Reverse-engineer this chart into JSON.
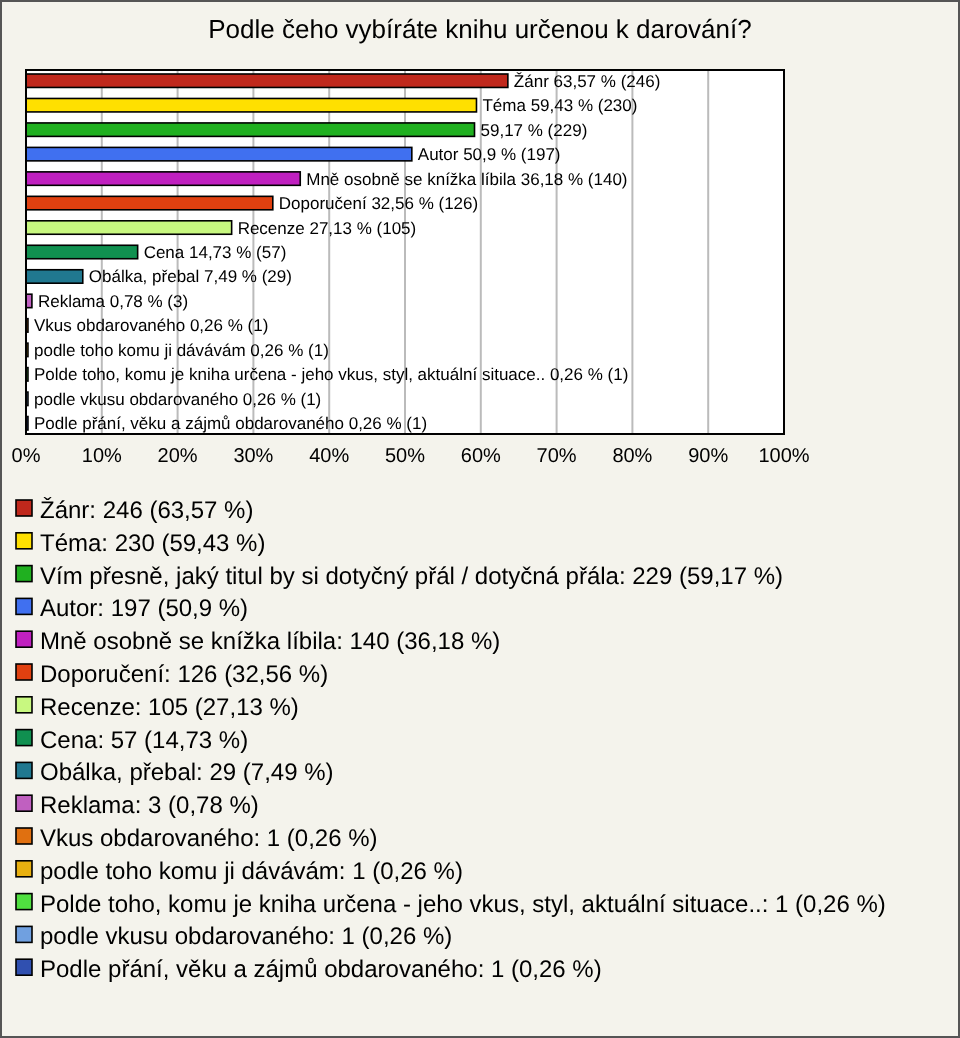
{
  "chart_data": {
    "type": "bar",
    "orientation": "horizontal",
    "title": "Podle čeho vybíráte knihu určenou k darování?",
    "categories": [
      null,
      null,
      null,
      null,
      null,
      null,
      null,
      null,
      null,
      null,
      null,
      null,
      null,
      null,
      null
    ],
    "series": [
      {
        "name": "Žánr: 246 (63,57 %)",
        "color": "#c0281c",
        "values": [
          63.57,
          null,
          null,
          null,
          null,
          null,
          null,
          null,
          null,
          null,
          null,
          null,
          null,
          null,
          null
        ],
        "value_labels": [
          "Žánr 63,57 % (246)",
          null,
          null,
          null,
          null,
          null,
          null,
          null,
          null,
          null,
          null,
          null,
          null,
          null,
          null
        ]
      },
      {
        "name": "Téma: 230 (59,43 %)",
        "color": "#ffe000",
        "values": [
          null,
          59.43,
          null,
          null,
          null,
          null,
          null,
          null,
          null,
          null,
          null,
          null,
          null,
          null,
          null
        ],
        "value_labels": [
          null,
          "Téma 59,43 % (230)",
          null,
          null,
          null,
          null,
          null,
          null,
          null,
          null,
          null,
          null,
          null,
          null,
          null
        ]
      },
      {
        "name": "Vím přesně, jaký titul by si dotyčný přál / dotyčná přála: 229 (59,17 %)",
        "color": "#20b020",
        "values": [
          null,
          null,
          59.17,
          null,
          null,
          null,
          null,
          null,
          null,
          null,
          null,
          null,
          null,
          null,
          null
        ],
        "value_labels": [
          null,
          null,
          "59,17 % (229)",
          null,
          null,
          null,
          null,
          null,
          null,
          null,
          null,
          null,
          null,
          null,
          null
        ]
      },
      {
        "name": "Autor: 197 (50,9 %)",
        "color": "#4070f0",
        "values": [
          null,
          null,
          null,
          50.9,
          null,
          null,
          null,
          null,
          null,
          null,
          null,
          null,
          null,
          null,
          null
        ],
        "value_labels": [
          null,
          null,
          null,
          "Autor 50,9 % (197)",
          null,
          null,
          null,
          null,
          null,
          null,
          null,
          null,
          null,
          null,
          null
        ]
      },
      {
        "name": "Mně osobně se knížka líbila: 140 (36,18 %)",
        "color": "#c020c0",
        "values": [
          null,
          null,
          null,
          null,
          36.18,
          null,
          null,
          null,
          null,
          null,
          null,
          null,
          null,
          null,
          null
        ],
        "value_labels": [
          null,
          null,
          null,
          null,
          "Mně osobně se knížka líbila 36,18 % (140)",
          null,
          null,
          null,
          null,
          null,
          null,
          null,
          null,
          null,
          null
        ]
      },
      {
        "name": "Doporučení: 126 (32,56 %)",
        "color": "#e04010",
        "values": [
          null,
          null,
          null,
          null,
          null,
          32.56,
          null,
          null,
          null,
          null,
          null,
          null,
          null,
          null,
          null
        ],
        "value_labels": [
          null,
          null,
          null,
          null,
          null,
          "Doporučení 32,56 % (126)",
          null,
          null,
          null,
          null,
          null,
          null,
          null,
          null,
          null
        ]
      },
      {
        "name": "Recenze: 105 (27,13 %)",
        "color": "#c8f880",
        "values": [
          null,
          null,
          null,
          null,
          null,
          null,
          27.13,
          null,
          null,
          null,
          null,
          null,
          null,
          null,
          null
        ],
        "value_labels": [
          null,
          null,
          null,
          null,
          null,
          null,
          "Recenze 27,13 % (105)",
          null,
          null,
          null,
          null,
          null,
          null,
          null,
          null
        ]
      },
      {
        "name": "Cena: 57 (14,73 %)",
        "color": "#109050",
        "values": [
          null,
          null,
          null,
          null,
          null,
          null,
          null,
          14.73,
          null,
          null,
          null,
          null,
          null,
          null,
          null
        ],
        "value_labels": [
          null,
          null,
          null,
          null,
          null,
          null,
          null,
          "Cena 14,73 % (57)",
          null,
          null,
          null,
          null,
          null,
          null,
          null
        ]
      },
      {
        "name": "Obálka, přebal: 29 (7,49 %)",
        "color": "#207890",
        "values": [
          null,
          null,
          null,
          null,
          null,
          null,
          null,
          null,
          7.49,
          null,
          null,
          null,
          null,
          null,
          null
        ],
        "value_labels": [
          null,
          null,
          null,
          null,
          null,
          null,
          null,
          null,
          "Obálka, přebal 7,49 % (29)",
          null,
          null,
          null,
          null,
          null,
          null
        ]
      },
      {
        "name": "Reklama: 3 (0,78 %)",
        "color": "#c060c0",
        "values": [
          null,
          null,
          null,
          null,
          null,
          null,
          null,
          null,
          null,
          0.78,
          null,
          null,
          null,
          null,
          null
        ],
        "value_labels": [
          null,
          null,
          null,
          null,
          null,
          null,
          null,
          null,
          null,
          "Reklama 0,78 % (3)",
          null,
          null,
          null,
          null,
          null
        ]
      },
      {
        "name": "Vkus obdarovaného: 1 (0,26 %)",
        "color": "#e07010",
        "values": [
          null,
          null,
          null,
          null,
          null,
          null,
          null,
          null,
          null,
          null,
          0.26,
          null,
          null,
          null,
          null
        ],
        "value_labels": [
          null,
          null,
          null,
          null,
          null,
          null,
          null,
          null,
          null,
          null,
          "Vkus obdarovaného 0,26 % (1)",
          null,
          null,
          null,
          null
        ]
      },
      {
        "name": "podle toho komu ji dávávám: 1 (0,26 %)",
        "color": "#e8b010",
        "values": [
          null,
          null,
          null,
          null,
          null,
          null,
          null,
          null,
          null,
          null,
          null,
          0.26,
          null,
          null,
          null
        ],
        "value_labels": [
          null,
          null,
          null,
          null,
          null,
          null,
          null,
          null,
          null,
          null,
          null,
          "podle toho komu ji dávávám 0,26 % (1)",
          null,
          null,
          null
        ]
      },
      {
        "name": "Polde toho, komu je kniha určena - jeho vkus, styl, aktuální situace..: 1 (0,26 %)",
        "color": "#50e040",
        "values": [
          null,
          null,
          null,
          null,
          null,
          null,
          null,
          null,
          null,
          null,
          null,
          null,
          0.26,
          null,
          null
        ],
        "value_labels": [
          null,
          null,
          null,
          null,
          null,
          null,
          null,
          null,
          null,
          null,
          null,
          null,
          "Polde toho, komu je kniha určena - jeho vkus, styl, aktuální situace.. 0,26 % (1)",
          null,
          null
        ]
      },
      {
        "name": "podle vkusu obdarovaného: 1 (0,26 %)",
        "color": "#70a0e0",
        "values": [
          null,
          null,
          null,
          null,
          null,
          null,
          null,
          null,
          null,
          null,
          null,
          null,
          null,
          0.26,
          null
        ],
        "value_labels": [
          null,
          null,
          null,
          null,
          null,
          null,
          null,
          null,
          null,
          null,
          null,
          null,
          null,
          "podle vkusu obdarovaného 0,26 % (1)",
          null
        ]
      },
      {
        "name": "Podle přání, věku a zájmů obdarovaného: 1 (0,26 %)",
        "color": "#3050b0",
        "values": [
          null,
          null,
          null,
          null,
          null,
          null,
          null,
          null,
          null,
          null,
          null,
          null,
          null,
          null,
          0.26
        ],
        "value_labels": [
          null,
          null,
          null,
          null,
          null,
          null,
          null,
          null,
          null,
          null,
          null,
          null,
          null,
          null,
          "Podle přání, věku a zájmů obdarovaného 0,26 % (1)"
        ]
      }
    ],
    "xlim": [
      0,
      100
    ],
    "xticks": [
      {
        "value": 0,
        "label": "0%"
      },
      {
        "value": 10,
        "label": "10%"
      },
      {
        "value": 20,
        "label": "20%"
      },
      {
        "value": 30,
        "label": "30%"
      },
      {
        "value": 40,
        "label": "40%"
      },
      {
        "value": 50,
        "label": "50%"
      },
      {
        "value": 60,
        "label": "60%"
      },
      {
        "value": 70,
        "label": "70%"
      },
      {
        "value": 80,
        "label": "80%"
      },
      {
        "value": 90,
        "label": "90%"
      },
      {
        "value": 100,
        "label": "100%"
      }
    ],
    "grid": "x",
    "legend": "bottom"
  }
}
